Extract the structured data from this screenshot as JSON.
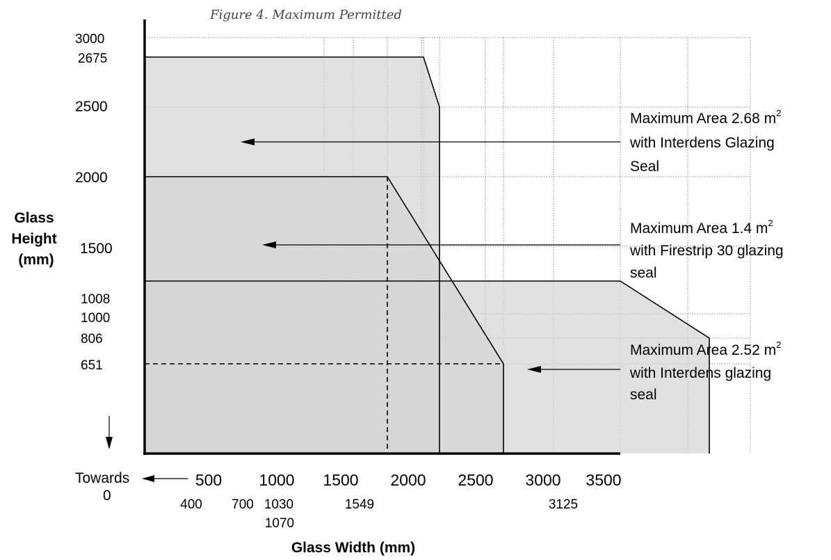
{
  "chart_data": {
    "type": "area",
    "title": "Figure 4. Maximum Permitted",
    "xlabel": "Glass Width (mm)",
    "ylabel_lines": [
      "Glass",
      "Height",
      "(mm)"
    ],
    "xlim": [
      0,
      3500
    ],
    "ylim": [
      0,
      3000
    ],
    "grid": true,
    "x_ticks_major": [
      "500",
      "1000",
      "1500",
      "2000",
      "2500",
      "3000",
      "3500"
    ],
    "x_ticks_minor": [
      "400",
      "700",
      "1030",
      "1549",
      "3125"
    ],
    "x_tick_extra": "1070",
    "y_ticks": [
      "3000",
      "2675",
      "2500",
      "2000",
      "1500",
      "1008",
      "1000",
      "806",
      "651"
    ],
    "towards_zero": {
      "line1": "Towards",
      "line2": "0"
    },
    "series": [
      {
        "name": "Maximum Area 2.68 m² with Interdens Glazing Seal",
        "points": [
          [
            0,
            2675
          ],
          [
            1030,
            2675
          ],
          [
            1070,
            2500
          ],
          [
            1070,
            0
          ],
          [
            0,
            0
          ]
        ]
      },
      {
        "name": "Maximum Area 1.4 m² with Firestrip 30 glazing seal",
        "points": [
          [
            0,
            2000
          ],
          [
            700,
            2000
          ],
          [
            1549,
            651
          ],
          [
            1549,
            0
          ],
          [
            0,
            0
          ]
        ],
        "guides": [
          [
            [
              700,
              2000
            ],
            [
              700,
              0
            ]
          ],
          [
            [
              0,
              651
            ],
            [
              1549,
              651
            ]
          ]
        ]
      },
      {
        "name": "Maximum Area 2.52 m² with Interdens glazing seal",
        "points": [
          [
            0,
            1008
          ],
          [
            2500,
            1008
          ],
          [
            3125,
            806
          ],
          [
            3125,
            0
          ],
          [
            0,
            0
          ]
        ]
      }
    ],
    "annotations": [
      {
        "line1": "Maximum Area 2.68 m",
        "sup": "2",
        "line2": "with Interdens Glazing",
        "line3": "Seal"
      },
      {
        "line1": "Maximum Area 1.4 m",
        "sup": "2",
        "line2": "with Firestrip 30 glazing",
        "line3": "seal"
      },
      {
        "line1": "Maximum Area 2.52 m",
        "sup": "2",
        "line2": "with Interdens glazing",
        "line3": "seal"
      }
    ]
  }
}
